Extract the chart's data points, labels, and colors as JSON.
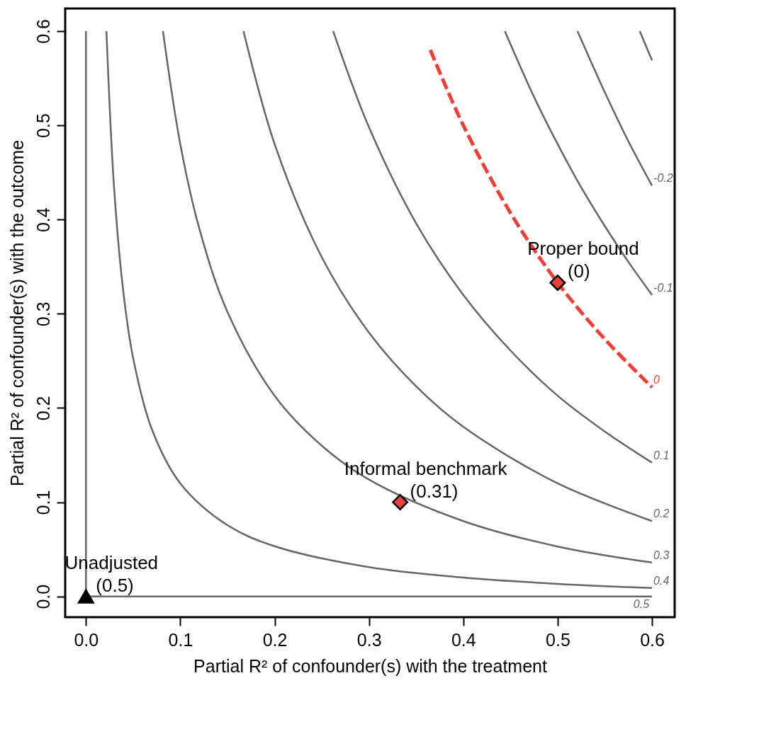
{
  "chart_data": {
    "type": "line",
    "xlabel": "Partial R² of confounder(s) with the treatment",
    "ylabel": "Partial R² of confounder(s) with the outcome",
    "xlim": [
      -0.022,
      0.624
    ],
    "ylim": [
      -0.022,
      0.624
    ],
    "xticks": [
      {
        "value": 0,
        "label": "0.0"
      },
      0.1,
      0.2,
      0.3,
      0.4,
      0.5,
      0.6
    ],
    "yticks": [
      {
        "value": 0,
        "label": "0.0"
      },
      0.1,
      0.2,
      0.3,
      0.4,
      0.5,
      0.6
    ],
    "series": [
      {
        "color": "#666666",
        "x": [
          0,
          0
        ],
        "values": [
          0.6,
          0
        ]
      },
      {
        "name": "0.5",
        "color": "#666666",
        "x": [
          0,
          0.3,
          0.6
        ],
        "values": [
          0,
          0,
          0
        ]
      },
      {
        "name": "0.4",
        "color": "#666666",
        "x": [
          0.0217,
          0.03,
          0.04,
          0.05,
          0.07,
          0.1,
          0.15,
          0.2,
          0.3,
          0.4,
          0.5,
          0.6
        ],
        "values": [
          0.6,
          0.431,
          0.32,
          0.253,
          0.177,
          0.12,
          0.0756,
          0.0533,
          0.0311,
          0.02,
          0.0133,
          0.0089
        ]
      },
      {
        "name": "0.3",
        "color": "#666666",
        "x": [
          0.0816,
          0.1,
          0.12,
          0.15,
          0.2,
          0.25,
          0.3,
          0.4,
          0.5,
          0.6
        ],
        "values": [
          0.6,
          0.48,
          0.391,
          0.302,
          0.213,
          0.16,
          0.124,
          0.08,
          0.053,
          0.036
        ]
      },
      {
        "name": "0.2",
        "color": "#666666",
        "x": [
          0.167,
          0.2,
          0.25,
          0.3,
          0.35,
          0.4,
          0.5,
          0.6
        ],
        "values": [
          0.6,
          0.48,
          0.36,
          0.28,
          0.223,
          0.18,
          0.12,
          0.08
        ]
      },
      {
        "name": "0.1",
        "color": "#666666",
        "x": [
          0.262,
          0.3,
          0.35,
          0.4,
          0.45,
          0.5,
          0.55,
          0.6
        ],
        "values": [
          0.6,
          0.498,
          0.396,
          0.32,
          0.261,
          0.213,
          0.175,
          0.142
        ]
      },
      {
        "name": "0",
        "color": "#e8433a",
        "line_style": "dashed",
        "x": [
          0.365,
          0.4,
          0.45,
          0.5,
          0.55,
          0.6
        ],
        "values": [
          0.58,
          0.5,
          0.407,
          0.333,
          0.273,
          0.222
        ]
      },
      {
        "name": "-0.1",
        "color": "#666666",
        "x": [
          0.444,
          0.475,
          0.5,
          0.525,
          0.55,
          0.575,
          0.6
        ],
        "values": [
          0.6,
          0.53,
          0.48,
          0.434,
          0.393,
          0.355,
          0.32
        ]
      },
      {
        "name": "-0.2",
        "color": "#666666",
        "x": [
          0.521,
          0.55,
          0.575,
          0.6
        ],
        "values": [
          0.6,
          0.535,
          0.483,
          0.436
        ]
      },
      {
        "color": "#666666",
        "x": [
          0.587,
          0.6
        ],
        "values": [
          0.6,
          0.569
        ]
      },
      {
        "type": "scatter",
        "marker": "triangle",
        "color": "#000000",
        "x": [
          0
        ],
        "values": [
          0
        ]
      },
      {
        "type": "scatter",
        "marker": "diamond",
        "color": "#e8433a",
        "x": [
          0.333,
          0.5
        ],
        "values": [
          0.1,
          0.333
        ]
      }
    ],
    "annotations": [
      {
        "text": "Unadjusted\n(0.5)",
        "x": 0,
        "y": 0
      },
      {
        "text": "Informal benchmark\n(0.31)",
        "x": 0.333,
        "y": 0.1
      },
      {
        "text": "Proper bound\n(0)",
        "x": 0.5,
        "y": 0.333
      }
    ]
  }
}
